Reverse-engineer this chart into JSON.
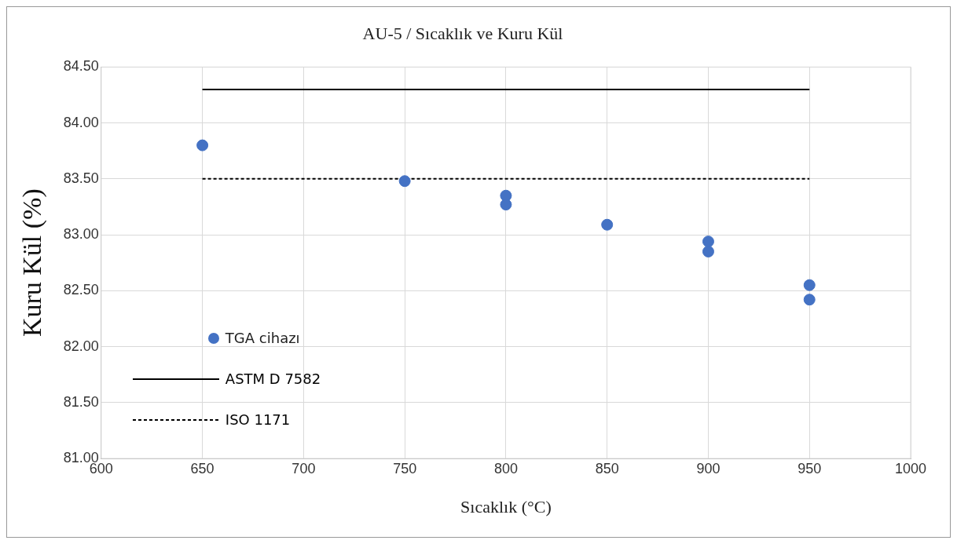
{
  "chart_data": {
    "type": "scatter",
    "title": "AU-5 / Sıcaklık ve Kuru Kül",
    "xlabel": "Sıcaklık (°C)",
    "ylabel": "Kuru Kül (%)",
    "xlim": [
      600,
      1000
    ],
    "xticks": [
      600,
      650,
      700,
      750,
      800,
      850,
      900,
      950,
      1000
    ],
    "ylim": [
      81,
      84.5
    ],
    "yticks": [
      {
        "value": 81,
        "label": "81.00"
      },
      {
        "value": 81.5,
        "label": "81.50"
      },
      {
        "value": 82,
        "label": "82.00"
      },
      {
        "value": 82.5,
        "label": "82.50"
      },
      {
        "value": 83,
        "label": "83.00"
      },
      {
        "value": 83.5,
        "label": "83.50"
      },
      {
        "value": 84,
        "label": "84.00"
      },
      {
        "value": 84.5,
        "label": "84.50"
      }
    ],
    "grid": true,
    "legend": "bottom left",
    "marker": "circle",
    "series": [
      {
        "name": "TGA cihazı",
        "color": "#4472c4",
        "x": [
          650,
          750,
          800,
          800,
          850,
          900,
          900,
          950,
          950
        ],
        "values": [
          83.8,
          83.48,
          83.35,
          83.27,
          83.09,
          82.94,
          82.85,
          82.55,
          82.42
        ]
      },
      {
        "name": "ASTM D 7582",
        "type": "line",
        "color": "#000000",
        "line_style": "solid",
        "marker": "none",
        "x": [
          650,
          950
        ],
        "values": [
          84.3,
          84.3
        ]
      },
      {
        "name": "ISO 1171",
        "type": "line",
        "color": "#000000",
        "line_style": "dashed",
        "marker": "none",
        "x": [
          650,
          950
        ],
        "values": [
          83.5,
          83.5
        ]
      }
    ]
  }
}
